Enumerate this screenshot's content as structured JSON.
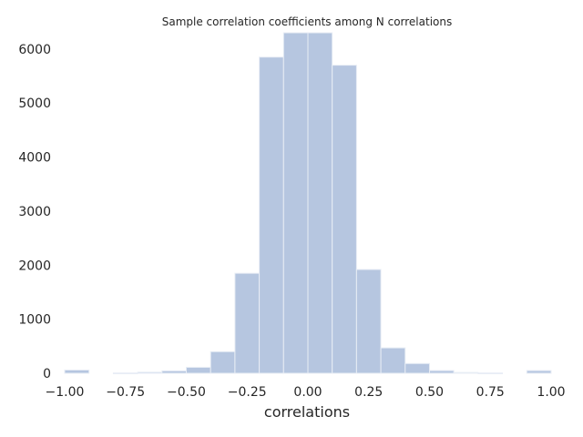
{
  "chart_data": {
    "type": "bar",
    "title": "Sample correlation coefficients among N correlations",
    "xlabel": "correlations",
    "ylabel": "",
    "xlim": [
      -1.0,
      1.0
    ],
    "ylim": [
      0,
      6300
    ],
    "grid": false,
    "bar_color": "#b6c6e0",
    "edge_color": "#e8edf5",
    "xticks": [
      {
        "value": -1.0,
        "label": "−1.00"
      },
      {
        "value": -0.75,
        "label": "−0.75"
      },
      {
        "value": -0.5,
        "label": "−0.50"
      },
      {
        "value": -0.25,
        "label": "−0.25"
      },
      {
        "value": 0.0,
        "label": "0.00"
      },
      {
        "value": 0.25,
        "label": "0.25"
      },
      {
        "value": 0.5,
        "label": "0.50"
      },
      {
        "value": 0.75,
        "label": "0.75"
      },
      {
        "value": 1.0,
        "label": "1.00"
      }
    ],
    "yticks": [
      {
        "value": 0,
        "label": "0"
      },
      {
        "value": 1000,
        "label": "1000"
      },
      {
        "value": 2000,
        "label": "2000"
      },
      {
        "value": 3000,
        "label": "3000"
      },
      {
        "value": 4000,
        "label": "4000"
      },
      {
        "value": 5000,
        "label": "5000"
      },
      {
        "value": 6000,
        "label": "6000"
      }
    ],
    "bin_edges": [
      -1.0,
      -0.9,
      -0.8,
      -0.7,
      -0.6,
      -0.5,
      -0.4,
      -0.3,
      -0.2,
      -0.1,
      0.0,
      0.1,
      0.2,
      0.3,
      0.4,
      0.5,
      0.6,
      0.7,
      0.8,
      0.9,
      1.0
    ],
    "counts": [
      60,
      0,
      5,
      20,
      45,
      110,
      400,
      1850,
      5850,
      6300,
      6300,
      5700,
      1920,
      470,
      180,
      50,
      15,
      5,
      0,
      50
    ]
  }
}
